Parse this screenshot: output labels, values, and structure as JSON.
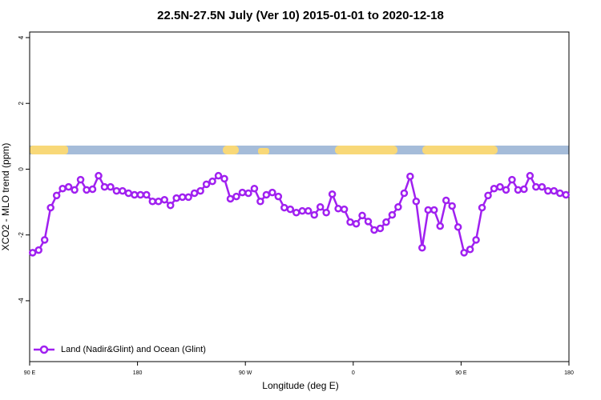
{
  "chart_data": {
    "type": "line",
    "title": "22.5N-27.5N July (Ver 10)   2015-01-01 to 2020-12-18",
    "x_label": "Longitude (deg E)",
    "y_label": "XCO2 - MLO trend (ppm)",
    "xlim": [
      90,
      540
    ],
    "xticks": [
      {
        "value": 90,
        "label": "90 E"
      },
      180,
      {
        "value": 270,
        "label": "90 W"
      },
      {
        "value": 360,
        "label": "0"
      },
      {
        "value": 450,
        "label": "90 E"
      },
      {
        "value": 540,
        "label": "180"
      }
    ],
    "ylim": [
      -5.85,
      4.17
    ],
    "yticks": [
      4,
      2,
      0,
      -2,
      -4
    ],
    "legend": "bottom-left",
    "x": [
      92.5,
      97.5,
      102.5,
      107.5,
      112.5,
      117.5,
      122.5,
      127.5,
      132.5,
      137.5,
      142.5,
      147.5,
      152.5,
      157.5,
      162.5,
      167.5,
      172.5,
      177.5,
      182.5,
      187.5,
      192.5,
      197.5,
      202.5,
      207.5,
      212.5,
      217.5,
      222.5,
      227.5,
      232.5,
      237.5,
      242.5,
      247.5,
      252.5,
      257.5,
      262.5,
      267.5,
      272.5,
      277.5,
      282.5,
      287.5,
      292.5,
      297.5,
      302.5,
      307.5,
      312.5,
      317.5,
      322.5,
      327.5,
      332.5,
      337.5,
      342.5,
      347.5,
      352.5,
      357.5,
      362.5,
      367.5,
      372.5,
      377.5,
      382.5,
      387.5,
      392.5,
      397.5,
      402.5,
      407.5,
      412.5,
      417.5,
      422.5,
      427.5,
      432.5,
      437.5,
      442.5,
      447.5,
      452.5,
      457.5,
      462.5,
      467.5,
      472.5,
      477.5,
      482.5,
      487.5,
      492.5,
      497.5,
      502.5,
      507.5,
      512.5,
      517.5,
      522.5,
      527.5,
      532.5,
      537.5
    ],
    "series": [
      {
        "name": "Land (Nadir&Glint) and Ocean (Glint)",
        "color": "#a020f0",
        "values": [
          -2.54,
          -2.46,
          -2.15,
          -1.17,
          -0.8,
          -0.59,
          -0.54,
          -0.63,
          -0.32,
          -0.63,
          -0.61,
          -0.2,
          -0.54,
          -0.54,
          -0.66,
          -0.66,
          -0.73,
          -0.78,
          -0.78,
          -0.78,
          -0.98,
          -0.98,
          -0.93,
          -1.1,
          -0.88,
          -0.85,
          -0.85,
          -0.73,
          -0.66,
          -0.46,
          -0.37,
          -0.2,
          -0.29,
          -0.9,
          -0.83,
          -0.71,
          -0.73,
          -0.59,
          -0.98,
          -0.78,
          -0.71,
          -0.83,
          -1.17,
          -1.22,
          -1.32,
          -1.27,
          -1.27,
          -1.39,
          -1.15,
          -1.32,
          -0.76,
          -1.2,
          -1.22,
          -1.61,
          -1.66,
          -1.41,
          -1.59,
          -1.85,
          -1.8,
          -1.61,
          -1.39,
          -1.15,
          -0.73,
          -0.22,
          -0.98,
          -2.39,
          -1.24,
          -1.24,
          -1.73,
          -0.95,
          -1.12,
          -1.76,
          -2.54,
          -2.44,
          -2.15,
          -1.17,
          -0.8,
          -0.59,
          -0.54,
          -0.63,
          -0.32,
          -0.63,
          -0.61,
          -0.2,
          -0.54,
          -0.54,
          -0.66,
          -0.66,
          -0.73,
          -0.78
        ]
      }
    ]
  }
}
